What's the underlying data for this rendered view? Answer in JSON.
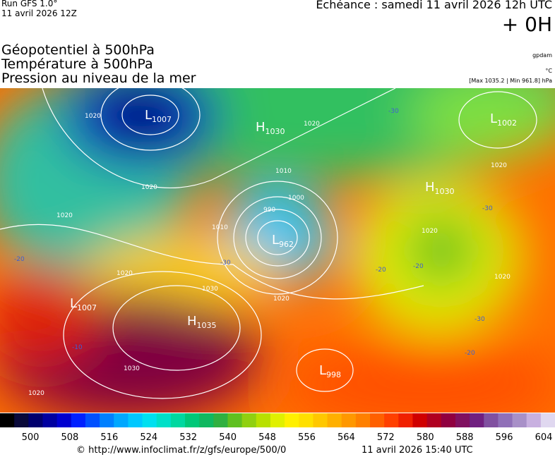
{
  "header": {
    "run": "Run GFS 1.0°",
    "run_date": "11 avril 2026 12Z",
    "echeance": "Echéance : samedi 11 avril 2026 12h UTC",
    "lead": "+ 0H",
    "fields": [
      "Géopotentiel à 500hPa",
      "Température à 500hPa",
      "Pression au niveau de la mer"
    ],
    "unit_geopot": "gpdam",
    "unit_temp": "°C",
    "pressure_range": "[Max 1035.2 | Min 961.8] hPa"
  },
  "map": {
    "centers": [
      {
        "letter": "L",
        "value": 1007
      },
      {
        "letter": "H",
        "value": 1030
      },
      {
        "letter": "L",
        "value": 1002
      },
      {
        "letter": "H",
        "value": 1030
      },
      {
        "letter": "L",
        "value": 962
      },
      {
        "letter": "L",
        "value": 1007
      },
      {
        "letter": "H",
        "value": 1035
      },
      {
        "letter": "L",
        "value": 998
      }
    ],
    "isobar_labels": [
      1020,
      1020,
      1020,
      1010,
      1000,
      990,
      1010,
      1020,
      1020,
      1030,
      1020,
      1030,
      1020,
      1020,
      1020,
      1020
    ],
    "temperature_labels": [
      -30,
      -30,
      -30,
      -20,
      -20,
      -20,
      -30,
      -20,
      -10
    ]
  },
  "colorbar": {
    "colors": [
      "#000000",
      "#0a0a3a",
      "#00006e",
      "#0000a0",
      "#0000d0",
      "#0020ff",
      "#0050ff",
      "#0080ff",
      "#00a8ff",
      "#00c8ff",
      "#00e0f0",
      "#00e0c8",
      "#00d8a0",
      "#00c878",
      "#10b860",
      "#30b040",
      "#60c020",
      "#90d010",
      "#b8e000",
      "#e0f000",
      "#fff000",
      "#ffe000",
      "#ffc800",
      "#ffb000",
      "#ff9800",
      "#ff8000",
      "#ff6000",
      "#ff4000",
      "#f02000",
      "#d00000",
      "#b00020",
      "#900040",
      "#801060",
      "#702080",
      "#8050a0",
      "#9070b8",
      "#a890c8",
      "#c8b0e0",
      "#e0d8f0"
    ],
    "labels": [
      500,
      508,
      516,
      524,
      532,
      540,
      548,
      556,
      564,
      572,
      580,
      588,
      596,
      604
    ]
  },
  "footer": {
    "url": "© http://www.infoclimat.fr/z/gfs/europe/500/0",
    "generated": "11 avril 2026 15:40 UTC"
  }
}
